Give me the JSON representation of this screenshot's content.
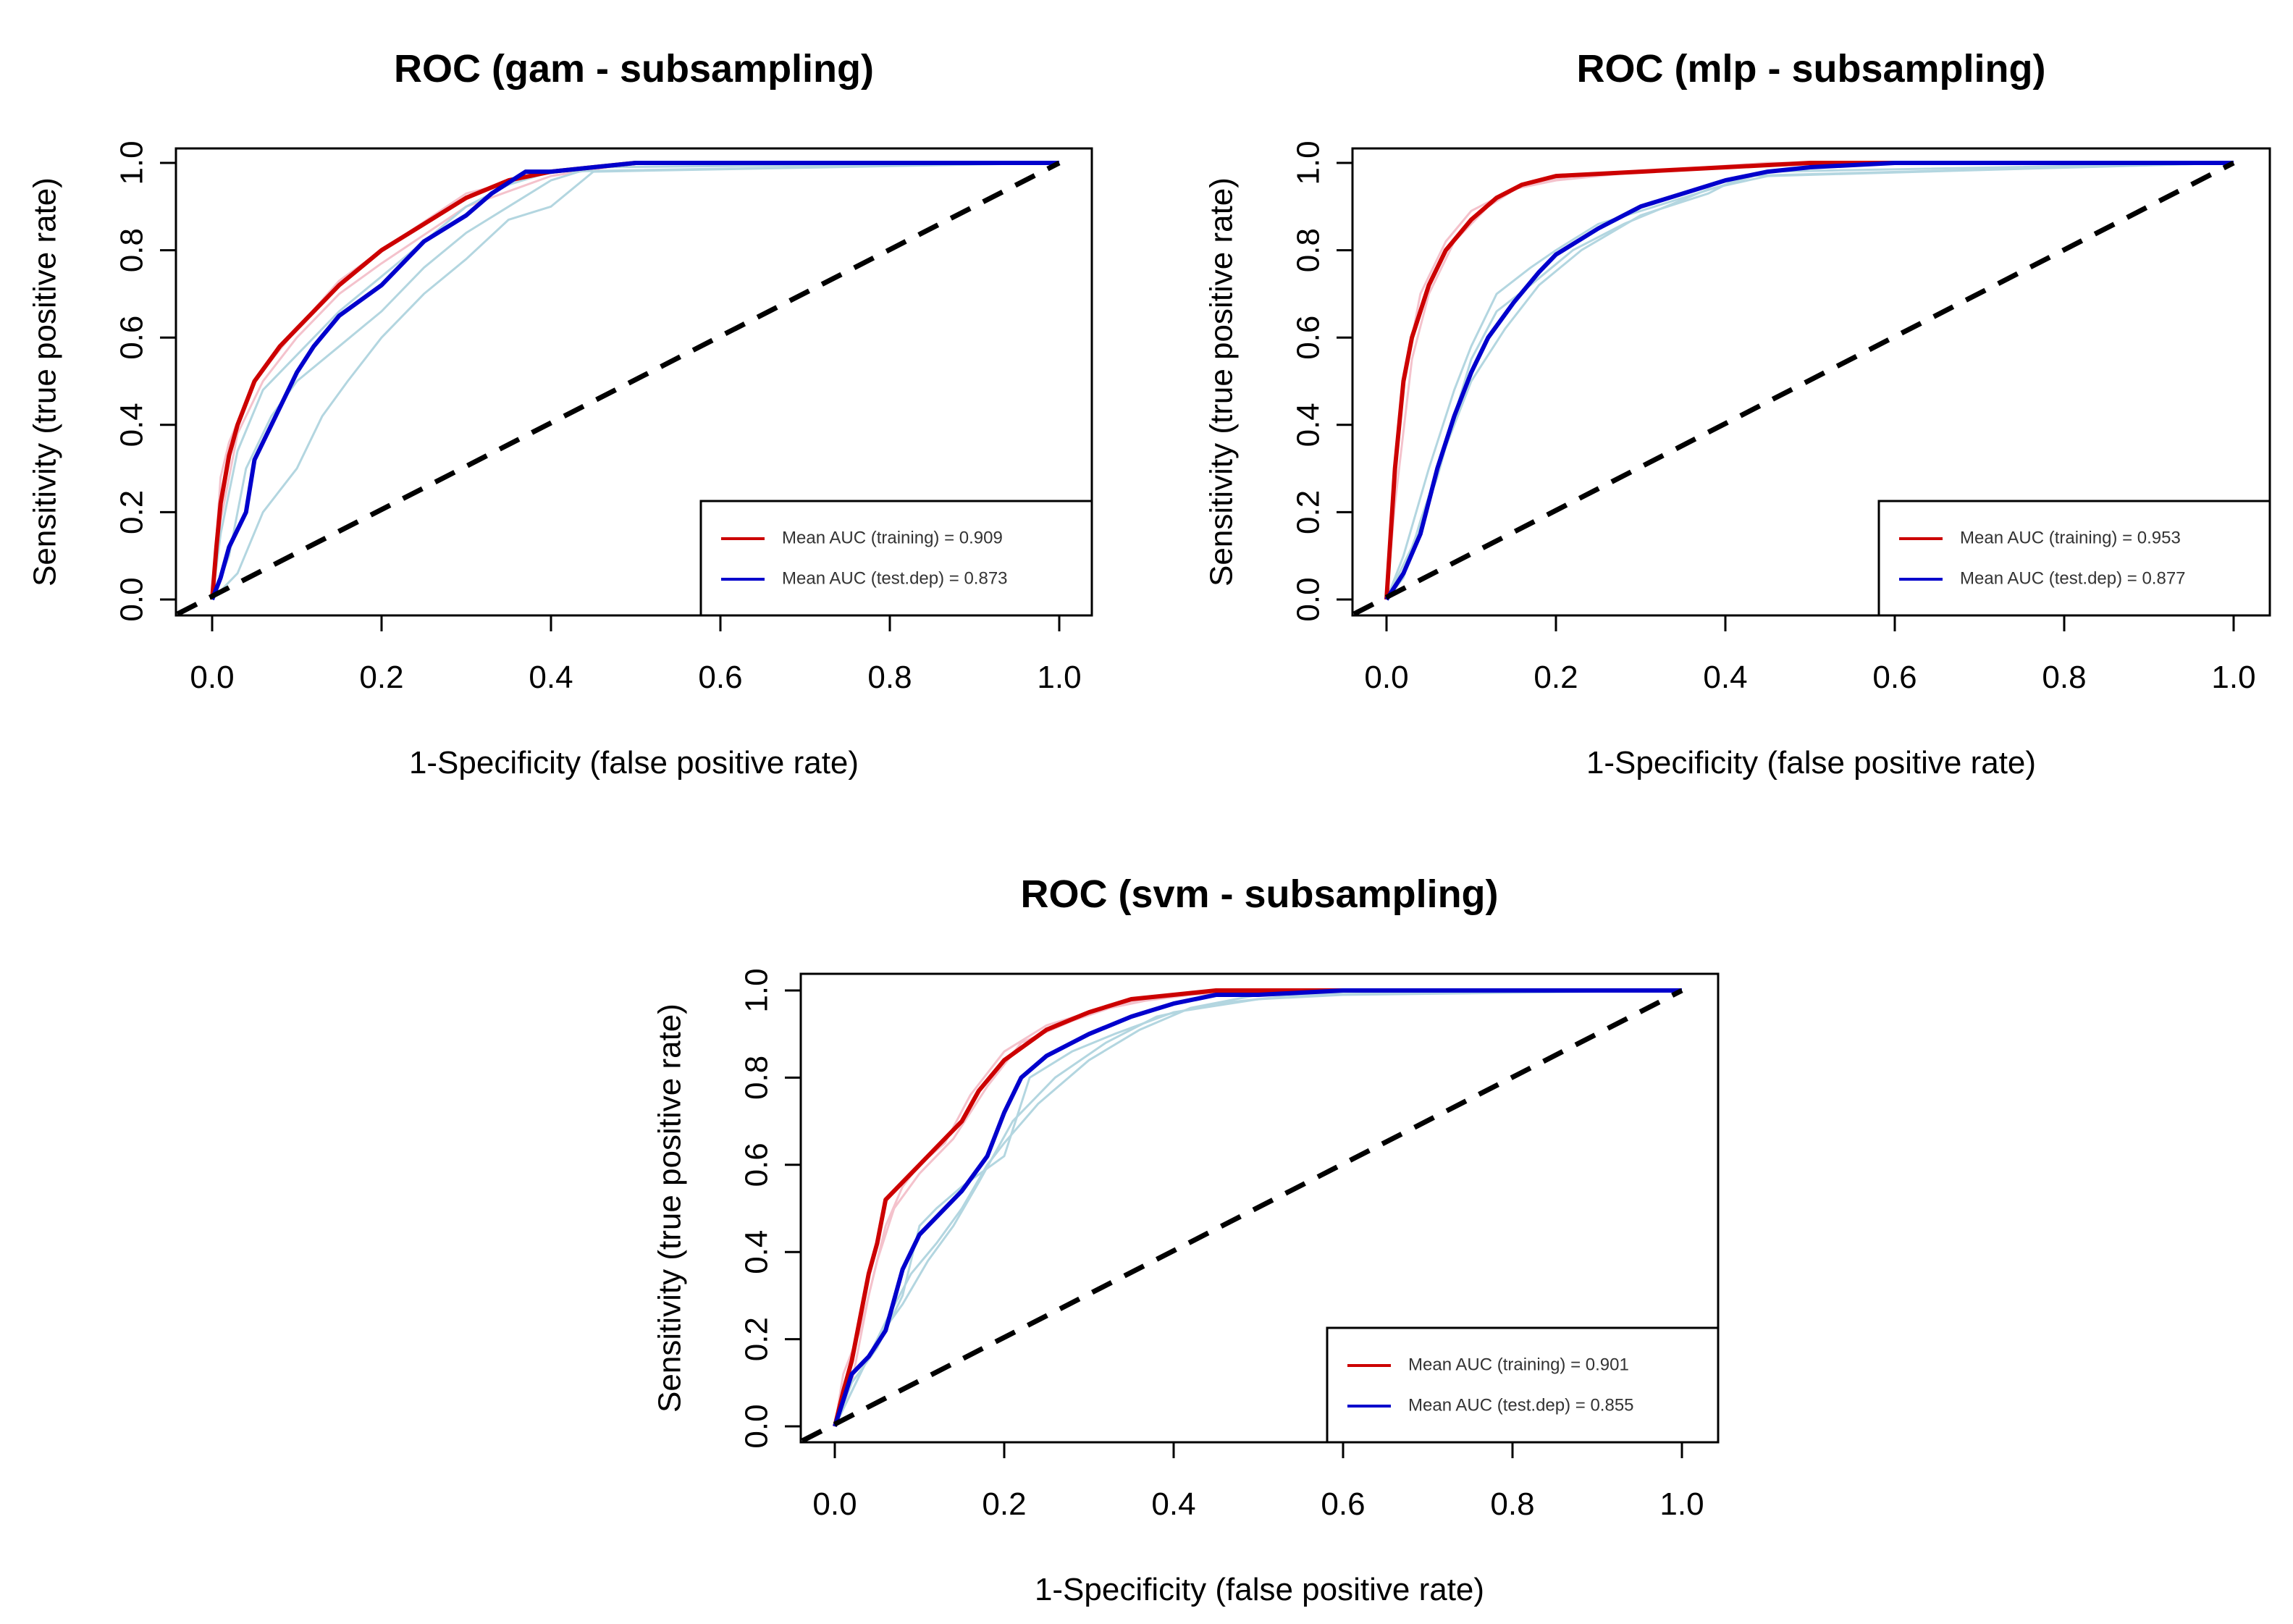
{
  "figure": {
    "background": "#ffffff"
  },
  "colors": {
    "training_mean": "#cc0000",
    "test_mean": "#0000cc",
    "training_runs": "#f4c2cc",
    "test_runs": "#b3d6e0",
    "diagonal": "#000000"
  },
  "chart_data": [
    {
      "type": "line",
      "title": "ROC (gam - subsampling)",
      "xlabel": "1-Specificity (false positive rate)",
      "ylabel": "Sensitivity (true positive rate)",
      "xlim": [
        0,
        1
      ],
      "ylim": [
        0,
        1
      ],
      "xticks": [
        "0.0",
        "0.2",
        "0.4",
        "0.6",
        "0.8",
        "1.0"
      ],
      "yticks": [
        "0.0",
        "0.2",
        "0.4",
        "0.6",
        "0.8",
        "1.0"
      ],
      "grid": false,
      "legend_position": "bottom-right",
      "legend": [
        "Mean AUC (training) = 0.909",
        "Mean AUC (test.dep) = 0.873"
      ],
      "series": [
        {
          "name": "Mean AUC (training) = 0.909",
          "role": "training_mean",
          "x": [
            0,
            0.005,
            0.01,
            0.02,
            0.03,
            0.05,
            0.08,
            0.1,
            0.15,
            0.2,
            0.25,
            0.3,
            0.35,
            0.4,
            0.45,
            0.5,
            0.6,
            0.8,
            1.0
          ],
          "y": [
            0,
            0.12,
            0.22,
            0.33,
            0.4,
            0.5,
            0.58,
            0.62,
            0.72,
            0.8,
            0.86,
            0.92,
            0.96,
            0.98,
            0.99,
            1.0,
            1.0,
            1.0,
            1.0
          ]
        },
        {
          "name": "Mean AUC (test.dep) = 0.873",
          "role": "test_mean",
          "x": [
            0,
            0.01,
            0.02,
            0.04,
            0.05,
            0.07,
            0.1,
            0.12,
            0.15,
            0.2,
            0.25,
            0.3,
            0.33,
            0.37,
            0.4,
            0.45,
            0.5,
            0.6,
            1.0
          ],
          "y": [
            0,
            0.05,
            0.12,
            0.2,
            0.32,
            0.4,
            0.52,
            0.58,
            0.65,
            0.72,
            0.82,
            0.88,
            0.93,
            0.98,
            0.98,
            0.99,
            1.0,
            1.0,
            1.0
          ]
        },
        {
          "role": "training_run",
          "x": [
            0,
            0.01,
            0.02,
            0.05,
            0.1,
            0.15,
            0.2,
            0.3,
            0.4,
            0.5,
            1.0
          ],
          "y": [
            0,
            0.28,
            0.36,
            0.5,
            0.62,
            0.73,
            0.8,
            0.93,
            0.98,
            1.0,
            1.0
          ]
        },
        {
          "role": "training_run",
          "x": [
            0,
            0.01,
            0.03,
            0.06,
            0.1,
            0.15,
            0.2,
            0.3,
            0.4,
            0.5,
            1.0
          ],
          "y": [
            0,
            0.18,
            0.38,
            0.5,
            0.6,
            0.7,
            0.77,
            0.9,
            0.97,
            1.0,
            1.0
          ]
        },
        {
          "role": "test_run",
          "x": [
            0,
            0.02,
            0.04,
            0.07,
            0.1,
            0.15,
            0.2,
            0.25,
            0.3,
            0.35,
            0.4,
            0.45,
            1.0
          ],
          "y": [
            0,
            0.1,
            0.3,
            0.42,
            0.5,
            0.58,
            0.66,
            0.76,
            0.84,
            0.9,
            0.96,
            0.99,
            1.0
          ]
        },
        {
          "role": "test_run",
          "x": [
            0,
            0.03,
            0.06,
            0.1,
            0.13,
            0.16,
            0.2,
            0.25,
            0.3,
            0.35,
            0.4,
            0.45,
            1.0
          ],
          "y": [
            0,
            0.06,
            0.2,
            0.3,
            0.42,
            0.5,
            0.6,
            0.7,
            0.78,
            0.87,
            0.9,
            0.98,
            1.0
          ]
        },
        {
          "role": "test_run",
          "x": [
            0,
            0.01,
            0.03,
            0.06,
            0.1,
            0.15,
            0.2,
            0.25,
            0.3,
            0.35,
            0.4,
            1.0
          ],
          "y": [
            0,
            0.15,
            0.34,
            0.48,
            0.56,
            0.66,
            0.74,
            0.82,
            0.9,
            0.95,
            0.98,
            1.0
          ]
        }
      ]
    },
    {
      "type": "line",
      "title": "ROC (mlp - subsampling)",
      "xlabel": "1-Specificity (false positive rate)",
      "ylabel": "Sensitivity (true positive rate)",
      "xlim": [
        0,
        1
      ],
      "ylim": [
        0,
        1
      ],
      "xticks": [
        "0.0",
        "0.2",
        "0.4",
        "0.6",
        "0.8",
        "1.0"
      ],
      "yticks": [
        "0.0",
        "0.2",
        "0.4",
        "0.6",
        "0.8",
        "1.0"
      ],
      "grid": false,
      "legend_position": "bottom-right",
      "legend": [
        "Mean AUC (training) = 0.953",
        "Mean AUC (test.dep) = 0.877"
      ],
      "series": [
        {
          "name": "Mean AUC (training) = 0.953",
          "role": "training_mean",
          "x": [
            0,
            0.005,
            0.01,
            0.02,
            0.03,
            0.05,
            0.07,
            0.1,
            0.13,
            0.16,
            0.2,
            0.3,
            0.4,
            0.5,
            0.7,
            1.0
          ],
          "y": [
            0,
            0.15,
            0.3,
            0.5,
            0.6,
            0.72,
            0.8,
            0.87,
            0.92,
            0.95,
            0.97,
            0.98,
            0.99,
            1.0,
            1.0,
            1.0
          ]
        },
        {
          "name": "Mean AUC (test.dep) = 0.877",
          "role": "test_mean",
          "x": [
            0,
            0.02,
            0.04,
            0.06,
            0.08,
            0.1,
            0.12,
            0.15,
            0.18,
            0.2,
            0.25,
            0.3,
            0.35,
            0.4,
            0.45,
            0.5,
            0.6,
            1.0
          ],
          "y": [
            0,
            0.06,
            0.15,
            0.3,
            0.42,
            0.52,
            0.6,
            0.68,
            0.75,
            0.79,
            0.85,
            0.9,
            0.93,
            0.96,
            0.98,
            0.99,
            1.0,
            1.0
          ]
        },
        {
          "role": "training_run",
          "x": [
            0,
            0.01,
            0.02,
            0.04,
            0.07,
            0.1,
            0.15,
            0.2,
            0.3,
            0.4,
            0.5,
            1.0
          ],
          "y": [
            0,
            0.32,
            0.5,
            0.7,
            0.82,
            0.89,
            0.94,
            0.96,
            0.98,
            0.99,
            1.0,
            1.0
          ]
        },
        {
          "role": "training_run",
          "x": [
            0,
            0.01,
            0.03,
            0.05,
            0.08,
            0.12,
            0.16,
            0.22,
            0.3,
            0.45,
            1.0
          ],
          "y": [
            0,
            0.22,
            0.55,
            0.7,
            0.82,
            0.9,
            0.95,
            0.97,
            0.98,
            1.0,
            1.0
          ]
        },
        {
          "role": "test_run",
          "x": [
            0,
            0.02,
            0.05,
            0.08,
            0.1,
            0.13,
            0.17,
            0.2,
            0.25,
            0.3,
            0.35,
            0.4,
            0.45,
            1.0
          ],
          "y": [
            0,
            0.1,
            0.3,
            0.48,
            0.58,
            0.7,
            0.76,
            0.8,
            0.86,
            0.89,
            0.92,
            0.95,
            0.98,
            1.0
          ]
        },
        {
          "role": "test_run",
          "x": [
            0,
            0.03,
            0.06,
            0.08,
            0.1,
            0.13,
            0.17,
            0.22,
            0.28,
            0.33,
            0.38,
            0.45,
            1.0
          ],
          "y": [
            0,
            0.12,
            0.28,
            0.42,
            0.55,
            0.66,
            0.72,
            0.8,
            0.86,
            0.9,
            0.94,
            0.97,
            1.0
          ]
        },
        {
          "role": "test_run",
          "x": [
            0,
            0.02,
            0.04,
            0.07,
            0.1,
            0.14,
            0.18,
            0.23,
            0.3,
            0.38,
            0.42,
            1.0
          ],
          "y": [
            0,
            0.05,
            0.18,
            0.35,
            0.5,
            0.62,
            0.72,
            0.8,
            0.88,
            0.93,
            0.97,
            1.0
          ]
        }
      ]
    },
    {
      "type": "line",
      "title": "ROC (svm - subsampling)",
      "xlabel": "1-Specificity (false positive rate)",
      "ylabel": "Sensitivity (true positive rate)",
      "xlim": [
        0,
        1
      ],
      "ylim": [
        0,
        1
      ],
      "xticks": [
        "0.0",
        "0.2",
        "0.4",
        "0.6",
        "0.8",
        "1.0"
      ],
      "yticks": [
        "0.0",
        "0.2",
        "0.4",
        "0.6",
        "0.8",
        "1.0"
      ],
      "grid": false,
      "legend_position": "bottom-right",
      "legend": [
        "Mean AUC (training) = 0.901",
        "Mean AUC (test.dep) = 0.855"
      ],
      "series": [
        {
          "name": "Mean AUC (training) = 0.901",
          "role": "training_mean",
          "x": [
            0,
            0.01,
            0.02,
            0.03,
            0.04,
            0.05,
            0.06,
            0.08,
            0.1,
            0.12,
            0.15,
            0.17,
            0.2,
            0.25,
            0.3,
            0.35,
            0.4,
            0.45,
            0.6,
            0.8,
            1.0
          ],
          "y": [
            0,
            0.08,
            0.15,
            0.25,
            0.35,
            0.42,
            0.52,
            0.56,
            0.6,
            0.64,
            0.7,
            0.77,
            0.84,
            0.91,
            0.95,
            0.98,
            0.99,
            1.0,
            1.0,
            1.0,
            1.0
          ]
        },
        {
          "name": "Mean AUC (test.dep) = 0.855",
          "role": "test_mean",
          "x": [
            0,
            0.01,
            0.02,
            0.04,
            0.06,
            0.08,
            0.1,
            0.12,
            0.15,
            0.18,
            0.2,
            0.22,
            0.25,
            0.3,
            0.35,
            0.4,
            0.45,
            0.5,
            0.6,
            1.0
          ],
          "y": [
            0,
            0.06,
            0.12,
            0.16,
            0.22,
            0.36,
            0.44,
            0.48,
            0.54,
            0.62,
            0.72,
            0.8,
            0.85,
            0.9,
            0.94,
            0.97,
            0.99,
            0.99,
            1.0,
            1.0
          ]
        },
        {
          "role": "training_run",
          "x": [
            0,
            0.02,
            0.04,
            0.06,
            0.08,
            0.1,
            0.13,
            0.16,
            0.2,
            0.25,
            0.3,
            0.35,
            0.4,
            0.5,
            1.0
          ],
          "y": [
            0,
            0.1,
            0.3,
            0.46,
            0.55,
            0.6,
            0.65,
            0.76,
            0.86,
            0.92,
            0.95,
            0.97,
            0.99,
            1.0,
            1.0
          ]
        },
        {
          "role": "training_run",
          "x": [
            0,
            0.01,
            0.03,
            0.05,
            0.07,
            0.1,
            0.14,
            0.18,
            0.22,
            0.28,
            0.34,
            0.42,
            0.5,
            1.0
          ],
          "y": [
            0,
            0.12,
            0.22,
            0.38,
            0.5,
            0.58,
            0.66,
            0.78,
            0.88,
            0.93,
            0.97,
            0.99,
            1.0,
            1.0
          ]
        },
        {
          "role": "test_run",
          "x": [
            0,
            0.02,
            0.05,
            0.08,
            0.1,
            0.12,
            0.15,
            0.2,
            0.23,
            0.28,
            0.33,
            0.4,
            0.5,
            0.6,
            1.0
          ],
          "y": [
            0,
            0.1,
            0.18,
            0.3,
            0.46,
            0.5,
            0.55,
            0.62,
            0.8,
            0.86,
            0.9,
            0.95,
            0.98,
            0.99,
            1.0
          ]
        },
        {
          "role": "test_run",
          "x": [
            0,
            0.03,
            0.06,
            0.09,
            0.12,
            0.15,
            0.18,
            0.2,
            0.24,
            0.3,
            0.36,
            0.42,
            0.5,
            1.0
          ],
          "y": [
            0,
            0.12,
            0.24,
            0.35,
            0.42,
            0.5,
            0.6,
            0.65,
            0.74,
            0.84,
            0.91,
            0.96,
            0.99,
            1.0
          ]
        },
        {
          "role": "test_run",
          "x": [
            0,
            0.02,
            0.05,
            0.08,
            0.11,
            0.14,
            0.17,
            0.21,
            0.26,
            0.32,
            0.38,
            0.45,
            0.55,
            1.0
          ],
          "y": [
            0,
            0.08,
            0.2,
            0.28,
            0.38,
            0.46,
            0.56,
            0.7,
            0.8,
            0.88,
            0.94,
            0.97,
            0.99,
            1.0
          ]
        }
      ]
    }
  ]
}
